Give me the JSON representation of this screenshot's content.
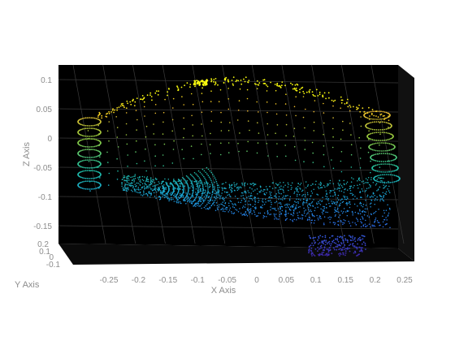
{
  "chart_data": {
    "type": "scatter3d",
    "title": "",
    "xlabel": "X Axis",
    "ylabel": "Y Axis",
    "zlabel": "Z Axis",
    "xlim": [
      -0.3,
      0.27
    ],
    "ylim": [
      -0.1,
      0.2
    ],
    "zlim": [
      -0.2,
      0.11
    ],
    "x_ticks": [
      "-0.25",
      "-0.2",
      "-0.15",
      "-0.1",
      "-0.05",
      "0",
      "0.05",
      "0.1",
      "0.15",
      "0.2",
      "0.25"
    ],
    "y_ticks": [
      "0.2",
      "0.1",
      "0",
      "-0.1"
    ],
    "z_ticks": [
      "0.1",
      "0.05",
      "0",
      "-0.05",
      "-0.1",
      "-0.15"
    ],
    "grid": true,
    "background": "#000000",
    "colormap": "parula",
    "colormap_stops": [
      "#3e26a8",
      "#2e6ef0",
      "#1aa0d8",
      "#20bfa0",
      "#8fcc40",
      "#f0b62e",
      "#f9fb0e"
    ],
    "series": [
      {
        "points_description_free": true,
        "x": [
          -0.28,
          -0.26,
          -0.24,
          -0.22,
          -0.2,
          -0.18,
          -0.16,
          -0.14,
          -0.12,
          -0.1,
          -0.08,
          -0.06,
          -0.04,
          -0.02,
          0,
          0.02,
          0.04,
          0.06,
          0.08,
          0.1,
          0.12,
          0.14,
          0.16,
          0.18,
          0.2,
          0.22,
          0.24
        ],
        "z": [
          -0.03,
          0.0,
          0.02,
          0.05,
          0.06,
          0.07,
          0.075,
          0.08,
          0.085,
          0.088,
          0.09,
          0.092,
          0.095,
          0.1,
          0.098,
          0.095,
          0.09,
          0.085,
          0.08,
          0.075,
          0.07,
          0.06,
          0.05,
          0.04,
          0.02,
          0.0,
          -0.04
        ]
      }
    ]
  }
}
